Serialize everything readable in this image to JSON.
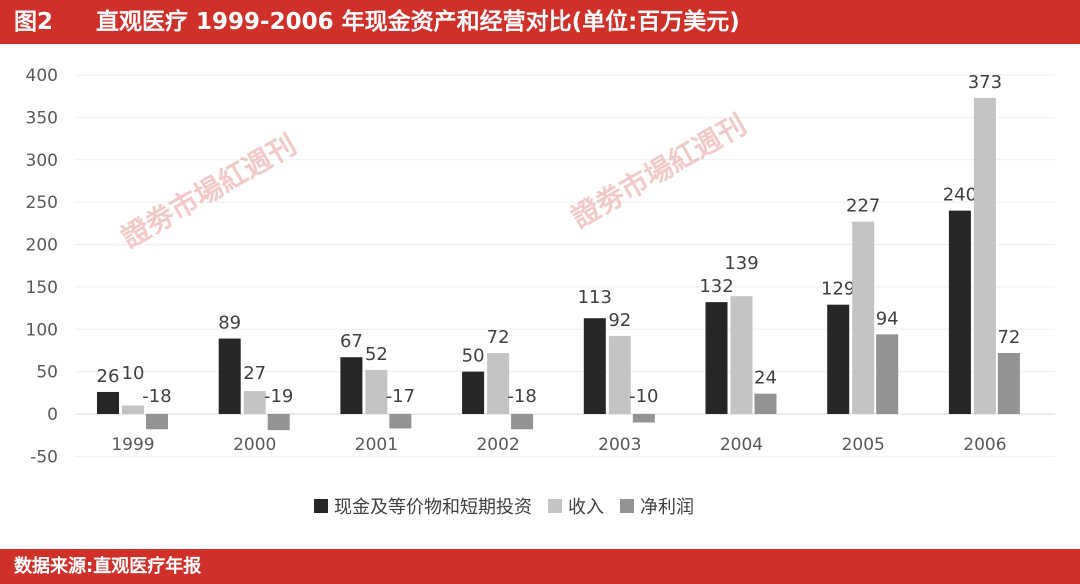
{
  "header": {
    "figure_no": "图2",
    "title": "直观医疗 1999-2006 年现金资产和经营对比(单位:百万美元)"
  },
  "footer": {
    "source": "数据来源:直观医疗年报"
  },
  "watermark": "證劵市場紅週刊",
  "chart_data": {
    "type": "bar",
    "categories": [
      "1999",
      "2000",
      "2001",
      "2002",
      "2003",
      "2004",
      "2005",
      "2006"
    ],
    "series": [
      {
        "name": "现金及等价物和短期投资",
        "color": "#262626",
        "values": [
          26,
          89,
          67,
          50,
          113,
          132,
          129,
          240
        ]
      },
      {
        "name": "收入",
        "color": "#c4c4c4",
        "values": [
          10,
          27,
          52,
          72,
          92,
          139,
          227,
          373
        ]
      },
      {
        "name": "净利润",
        "color": "#939393",
        "values": [
          -18,
          -19,
          -17,
          -18,
          -10,
          24,
          94,
          72
        ]
      }
    ],
    "ylim": [
      -50,
      400
    ],
    "yticks": [
      -50,
      0,
      50,
      100,
      150,
      200,
      250,
      300,
      350,
      400
    ],
    "grid": true,
    "legend": "bottom"
  }
}
